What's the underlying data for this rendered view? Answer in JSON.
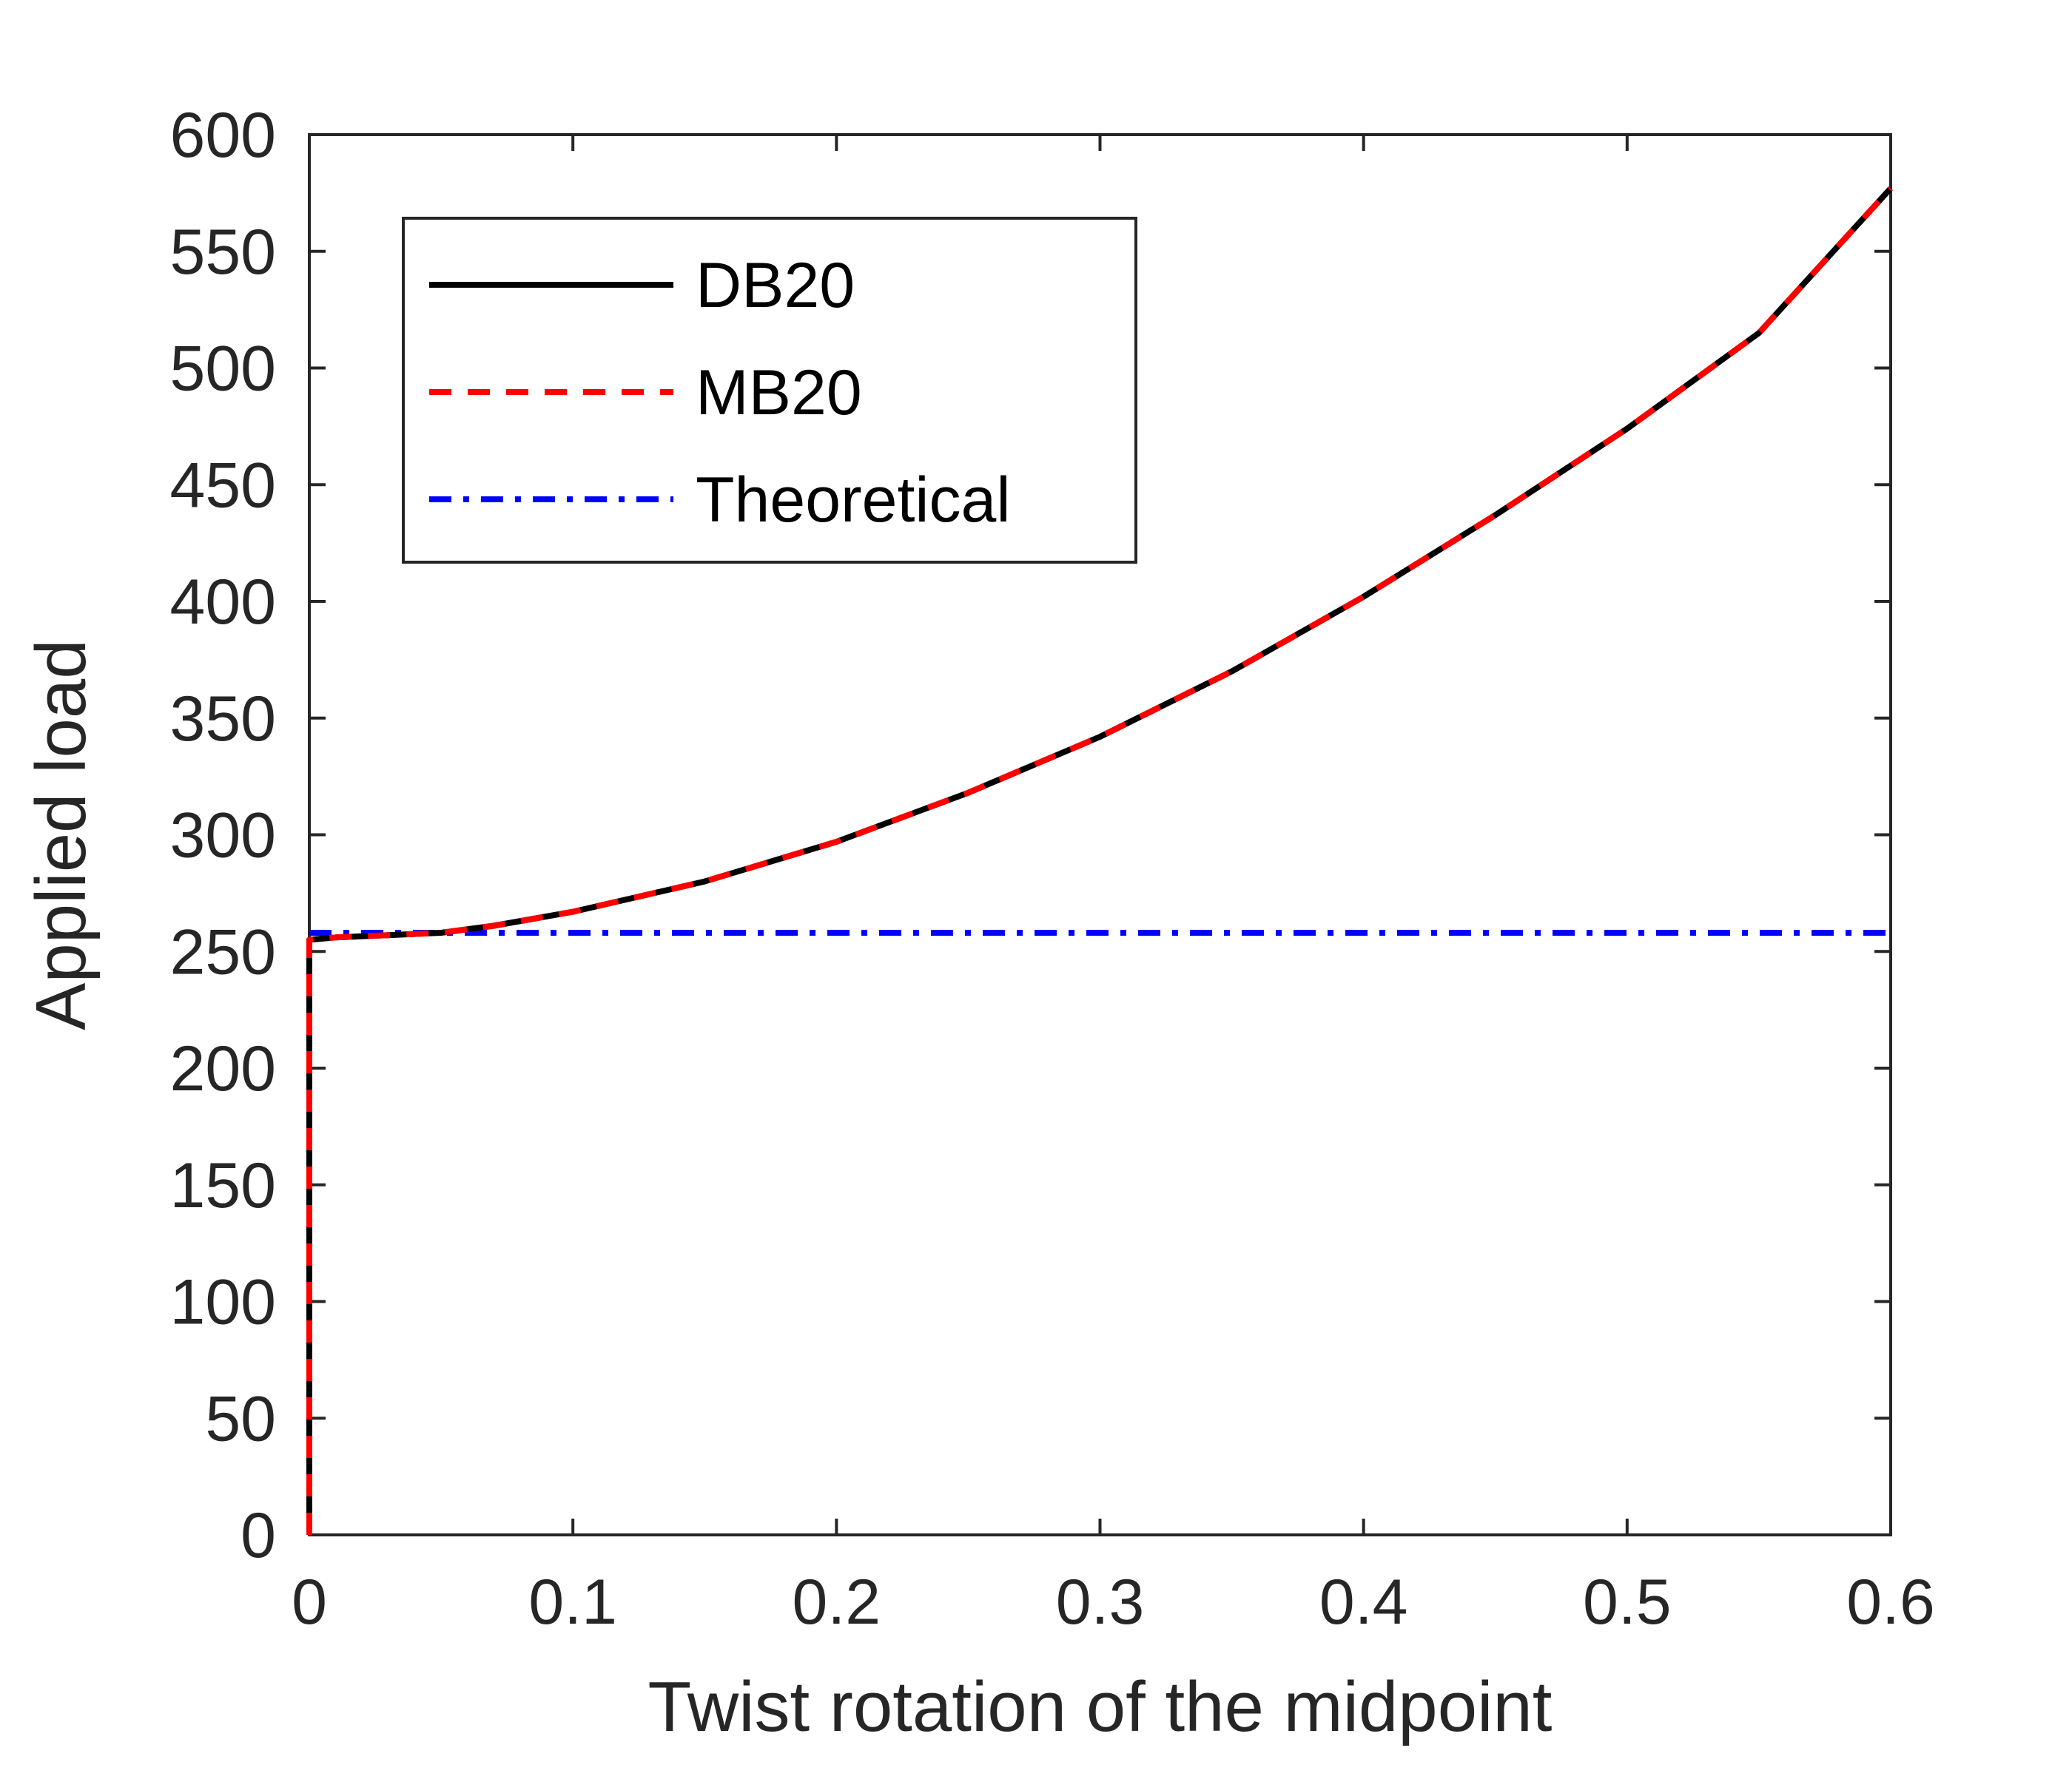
{
  "chart_data": {
    "type": "line",
    "title": "",
    "xlabel": "Twist rotation of the midpoint",
    "ylabel": "Applied load",
    "xlim": [
      0,
      0.6
    ],
    "ylim": [
      0,
      600
    ],
    "xticks": [
      0,
      0.1,
      0.2,
      0.3,
      0.4,
      0.5,
      0.6
    ],
    "xtick_labels": [
      "0",
      "0.1",
      "0.2",
      "0.3",
      "0.4",
      "0.5",
      "0.6"
    ],
    "yticks": [
      0,
      50,
      100,
      150,
      200,
      250,
      300,
      350,
      400,
      450,
      500,
      550,
      600
    ],
    "ytick_labels": [
      "0",
      "50",
      "100",
      "150",
      "200",
      "250",
      "300",
      "350",
      "400",
      "450",
      "500",
      "550",
      "600"
    ],
    "grid": false,
    "legend_position": "top-left",
    "series": [
      {
        "name": "DB20",
        "color": "#000000",
        "style": "solid",
        "x": [
          0,
          0,
          0.01,
          0.02,
          0.03,
          0.05,
          0.07,
          0.1,
          0.15,
          0.2,
          0.25,
          0.3,
          0.35,
          0.4,
          0.45,
          0.5,
          0.55,
          0.6
        ],
        "y": [
          0,
          255,
          256,
          256.5,
          257,
          258,
          261,
          267,
          280,
          297,
          318,
          342,
          370,
          402,
          437,
          474,
          515,
          577
        ]
      },
      {
        "name": "MB20",
        "color": "#ff0000",
        "style": "dashed",
        "x": [
          0,
          0,
          0.01,
          0.02,
          0.03,
          0.05,
          0.07,
          0.1,
          0.15,
          0.2,
          0.25,
          0.3,
          0.35,
          0.4,
          0.45,
          0.5,
          0.55,
          0.6
        ],
        "y": [
          0,
          255,
          256,
          256.5,
          257,
          258,
          261,
          267,
          280,
          297,
          318,
          342,
          370,
          402,
          437,
          474,
          515,
          577
        ]
      },
      {
        "name": "Theoretical",
        "color": "#0000ff",
        "style": "dashdot",
        "x": [
          0,
          0.6
        ],
        "y": [
          258,
          258
        ]
      }
    ]
  }
}
